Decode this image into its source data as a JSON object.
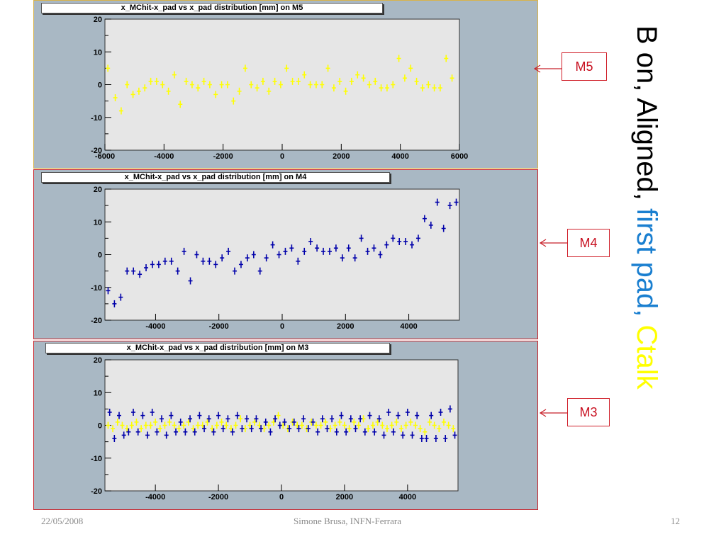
{
  "side_title": {
    "part1": "B on, Aligned, ",
    "part2": "first pad, ",
    "part3": "Ctalk",
    "color1": "#000000",
    "color2": "#1a7fd0",
    "color3": "#ffff00"
  },
  "callouts": [
    "M5",
    "M4",
    "M3"
  ],
  "footer": {
    "date": "22/05/2008",
    "author": "Simone Brusa, INFN-Ferrara",
    "page": "12"
  },
  "colors": {
    "panel_bg": "#a9b8c4",
    "plot_bg": "#e6e6e6",
    "frame_red": "#c8222a",
    "yellow_series": "#ffff00",
    "blue_series": "#0000aa"
  },
  "chart_data": [
    {
      "type": "scatter",
      "title": "x_MChit-x_pad vs x_pad distribution [mm] on M5",
      "xlim": [
        -6000,
        6000
      ],
      "ylim": [
        -20,
        20
      ],
      "xticks": [
        -6000,
        -4000,
        -2000,
        0,
        2000,
        4000,
        6000
      ],
      "xtick_labels": [
        "-6000",
        "-4000",
        "-2000",
        "0",
        "2000",
        "4000",
        "6000"
      ],
      "yticks": [
        -20,
        -10,
        0,
        10,
        20
      ],
      "grid": false,
      "series": [
        {
          "color": "#ffff00",
          "x": [
            -5900,
            -5650,
            -5450,
            -5250,
            -5050,
            -4850,
            -4650,
            -4450,
            -4250,
            -4050,
            -3850,
            -3650,
            -3450,
            -3250,
            -3050,
            -2850,
            -2650,
            -2450,
            -2250,
            -2050,
            -1850,
            -1650,
            -1450,
            -1250,
            -1050,
            -850,
            -650,
            -450,
            -250,
            -50,
            150,
            350,
            550,
            750,
            950,
            1150,
            1350,
            1550,
            1750,
            1950,
            2150,
            2350,
            2550,
            2750,
            2950,
            3150,
            3350,
            3550,
            3750,
            3950,
            4150,
            4350,
            4550,
            4750,
            4950,
            5150,
            5350,
            5550,
            5750
          ],
          "y": [
            5,
            -4,
            -8,
            0,
            -3,
            -2,
            -1,
            1,
            1,
            0,
            -2,
            3,
            -6,
            1,
            0,
            -1,
            1,
            0,
            -3,
            0,
            0,
            -5,
            -2,
            5,
            0,
            -1,
            1,
            -2,
            1,
            0,
            5,
            1,
            1,
            3,
            0,
            0,
            0,
            5,
            -1,
            1,
            -2,
            1,
            3,
            2,
            0,
            1,
            -1,
            -1,
            0,
            8,
            2,
            5,
            1,
            -1,
            0,
            -1,
            -1,
            8,
            2
          ]
        }
      ]
    },
    {
      "type": "scatter",
      "title": "x_MChit-x_pad vs x_pad distribution [mm] on M4",
      "xlim": [
        -5600,
        5600
      ],
      "ylim": [
        -20,
        20
      ],
      "xticks": [
        -4000,
        -2000,
        0,
        2000,
        4000
      ],
      "xtick_labels": [
        "-4000",
        "-2000",
        "0",
        "2000",
        "4000"
      ],
      "yticks": [
        -20,
        -10,
        0,
        10,
        20
      ],
      "grid": false,
      "series": [
        {
          "color": "#0000aa",
          "x": [
            -5500,
            -5300,
            -5100,
            -4900,
            -4700,
            -4500,
            -4300,
            -4100,
            -3900,
            -3700,
            -3500,
            -3300,
            -3100,
            -2900,
            -2700,
            -2500,
            -2300,
            -2100,
            -1900,
            -1700,
            -1500,
            -1300,
            -1100,
            -900,
            -700,
            -500,
            -300,
            -100,
            100,
            300,
            500,
            700,
            900,
            1100,
            1300,
            1500,
            1700,
            1900,
            2100,
            2300,
            2500,
            2700,
            2900,
            3100,
            3300,
            3500,
            3700,
            3900,
            4100,
            4300,
            4500,
            4700,
            4900,
            5100,
            5300,
            5500
          ],
          "y": [
            -11,
            -15,
            -13,
            -5,
            -5,
            -6,
            -4,
            -3,
            -3,
            -2,
            -2,
            -5,
            1,
            -8,
            0,
            -2,
            -2,
            -3,
            -1,
            1,
            -5,
            -3,
            -1,
            0,
            -5,
            -1,
            3,
            0,
            1,
            2,
            -2,
            1,
            4,
            2,
            1,
            1,
            2,
            -1,
            2,
            -1,
            5,
            1,
            2,
            0,
            3,
            5,
            4,
            4,
            3,
            5,
            11,
            9,
            16,
            8,
            15,
            16
          ]
        }
      ]
    },
    {
      "type": "scatter",
      "title": "x_MChit-x_pad vs x_pad distribution [mm] on M3",
      "xlim": [
        -5600,
        5600
      ],
      "ylim": [
        -20,
        20
      ],
      "xticks": [
        -4000,
        -2000,
        0,
        2000,
        4000
      ],
      "xtick_labels": [
        "-4000",
        "-2000",
        "0",
        "2000",
        "4000"
      ],
      "yticks": [
        -20,
        -10,
        0,
        10,
        20
      ],
      "grid": false,
      "series": [
        {
          "color": "#ffff00",
          "x": [
            -5500,
            -5350,
            -5200,
            -5050,
            -4900,
            -4750,
            -4600,
            -4450,
            -4300,
            -4150,
            -4000,
            -3850,
            -3700,
            -3550,
            -3400,
            -3250,
            -3100,
            -2950,
            -2800,
            -2650,
            -2500,
            -2350,
            -2200,
            -2050,
            -1900,
            -1750,
            -1600,
            -1450,
            -1300,
            -1150,
            -1000,
            -850,
            -700,
            -550,
            -400,
            -250,
            -100,
            50,
            200,
            350,
            500,
            650,
            800,
            950,
            1100,
            1250,
            1400,
            1550,
            1700,
            1850,
            2000,
            2150,
            2300,
            2450,
            2600,
            2750,
            2900,
            3050,
            3200,
            3350,
            3500,
            3650,
            3800,
            3950,
            4100,
            4250,
            4400,
            4550,
            4700,
            4850,
            5000,
            5150,
            5300,
            5450
          ],
          "y": [
            0,
            -1,
            1,
            0,
            -1,
            0,
            1,
            -1,
            0,
            0,
            1,
            -1,
            0,
            1,
            0,
            -1,
            0,
            1,
            -1,
            0,
            0,
            1,
            -1,
            0,
            1,
            0,
            -1,
            0,
            2,
            -1,
            0,
            1,
            0,
            -1,
            0,
            1,
            3,
            0,
            -1,
            1,
            0,
            0,
            -1,
            1,
            0,
            0,
            1,
            -1,
            0,
            1,
            0,
            -1,
            1,
            0,
            2,
            -1,
            0,
            1,
            0,
            -1,
            0,
            1,
            -1,
            0,
            1,
            0,
            -1,
            -2,
            1,
            0,
            -1,
            1,
            0,
            -1
          ]
        },
        {
          "color": "#0000aa",
          "x": [
            -5450,
            -5300,
            -5150,
            -5000,
            -4850,
            -4700,
            -4550,
            -4400,
            -4250,
            -4100,
            -3950,
            -3800,
            -3650,
            -3500,
            -3350,
            -3200,
            -3050,
            -2900,
            -2750,
            -2600,
            -2450,
            -2300,
            -2150,
            -2000,
            -1850,
            -1700,
            -1550,
            -1400,
            -1250,
            -1100,
            -950,
            -800,
            -650,
            -500,
            -350,
            -200,
            -50,
            100,
            250,
            400,
            550,
            700,
            850,
            1000,
            1150,
            1300,
            1450,
            1600,
            1750,
            1900,
            2050,
            2200,
            2350,
            2500,
            2650,
            2800,
            2950,
            3100,
            3250,
            3400,
            3550,
            3700,
            3850,
            4000,
            4150,
            4300,
            4450,
            4600,
            4750,
            4900,
            5050,
            5200,
            5350,
            5500
          ],
          "y": [
            4,
            -4,
            3,
            -3,
            -2,
            4,
            -2,
            3,
            -3,
            4,
            -2,
            2,
            -3,
            3,
            -2,
            1,
            -2,
            2,
            -2,
            3,
            -1,
            2,
            -2,
            3,
            -1,
            2,
            -2,
            3,
            -1,
            2,
            -1,
            2,
            -1,
            1,
            -2,
            2,
            0,
            1,
            -1,
            1,
            -1,
            2,
            -1,
            1,
            -2,
            2,
            -1,
            2,
            -2,
            3,
            -2,
            2,
            -1,
            2,
            -2,
            3,
            -2,
            2,
            -3,
            4,
            -2,
            3,
            -3,
            4,
            -3,
            3,
            -4,
            -4,
            3,
            -4,
            4,
            -4,
            5,
            -3
          ]
        }
      ]
    }
  ]
}
